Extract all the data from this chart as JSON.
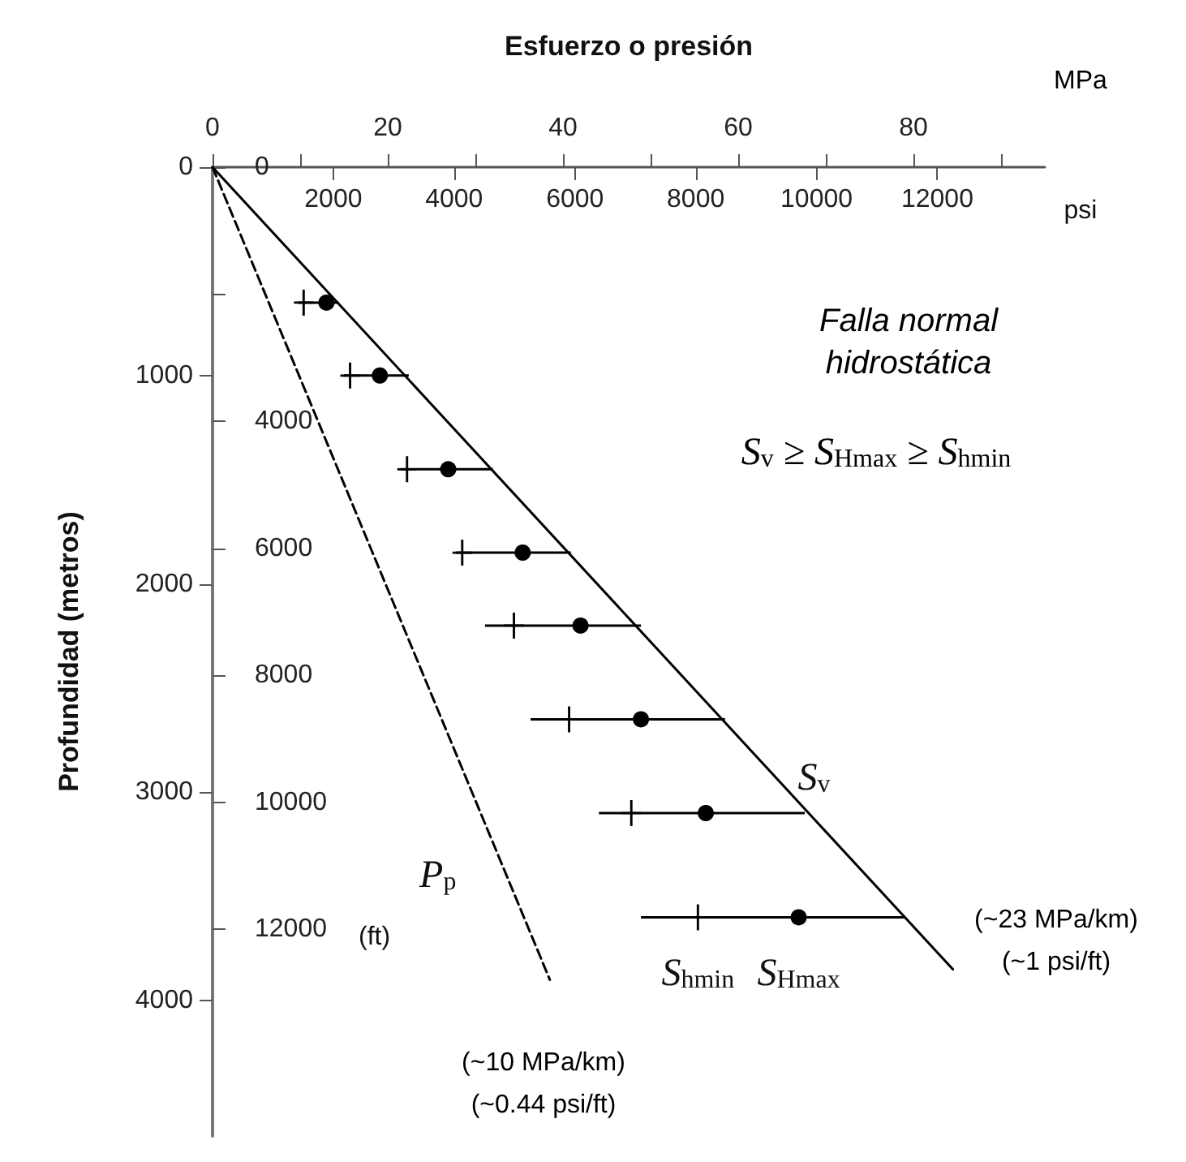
{
  "chart_data": {
    "type": "scatter",
    "xlabel": "Esfuerzo o presión",
    "ylabel": "Profundidad (metros)",
    "x2label": "psi",
    "y2label": "(ft)",
    "xlim": [
      0,
      95
    ],
    "xticks": [
      0,
      {
        "value": 10,
        "label": null
      },
      20,
      {
        "value": 30,
        "label": null
      },
      40,
      {
        "value": 50,
        "label": null
      },
      60,
      {
        "value": 70,
        "label": null
      },
      80,
      {
        "value": 90,
        "label": null
      }
    ],
    "x2lim": [
      0,
      13780
    ],
    "x2ticks": [
      2000,
      4000,
      6000,
      8000,
      10000,
      12000
    ],
    "ylim": [
      4650,
      0
    ],
    "yticks": [
      0,
      1000,
      2000,
      3000,
      4000
    ],
    "y2lim": [
      15256,
      0
    ],
    "y2ticks": [
      0,
      {
        "value": 2000,
        "label": null
      },
      4000,
      6000,
      8000,
      10000,
      12000
    ],
    "series": [
      {
        "name": "S$_{v}$",
        "type": "line",
        "color": "#000000",
        "line_style": "solid",
        "marker": "none",
        "x": [
          0,
          84.5
        ],
        "values": [
          0,
          3850
        ]
      },
      {
        "name": "P$_{p}$",
        "type": "line",
        "color": "#000000",
        "line_style": "dashed",
        "marker": "none",
        "x": [
          0,
          38.5
        ],
        "values": [
          0,
          3900
        ]
      },
      {
        "name": "S$_{hmin}$",
        "color": "#000000",
        "marker": "cross",
        "x": [
          10.4,
          15.7,
          22.2,
          28.5,
          34.4,
          40.7,
          47.8,
          55.4
        ],
        "values": [
          650,
          1000,
          1450,
          1850,
          2200,
          2650,
          3100,
          3600
        ]
      },
      {
        "name": "S$_{Hmax}$",
        "color": "#000000",
        "marker": "circle",
        "x": [
          13.0,
          19.1,
          26.9,
          35.4,
          42.0,
          48.9,
          56.3,
          66.9
        ],
        "values": [
          650,
          1000,
          1450,
          1850,
          2200,
          2650,
          3100,
          3600
        ],
        "xerrors": [
          [
            9.8,
            14.4
          ],
          [
            15.0,
            22.4
          ],
          [
            21.5,
            32.0
          ],
          [
            27.8,
            40.9
          ],
          [
            31.1,
            48.9
          ],
          [
            36.3,
            58.5
          ],
          [
            44.1,
            67.6
          ],
          [
            48.9,
            78.9
          ]
        ]
      }
    ],
    "annotations": [
      "MPa",
      "Falla normal\nhidrostática",
      "S$_{v}$ ≥ S$_{Hmax}$ ≥ S$_{hmin}$",
      "(~23 MPa/km)\n(~1 psi/ft)",
      "(~10 MPa/km)\n(~0.44 psi/ft)"
    ],
    "grid": false,
    "legend": false
  }
}
